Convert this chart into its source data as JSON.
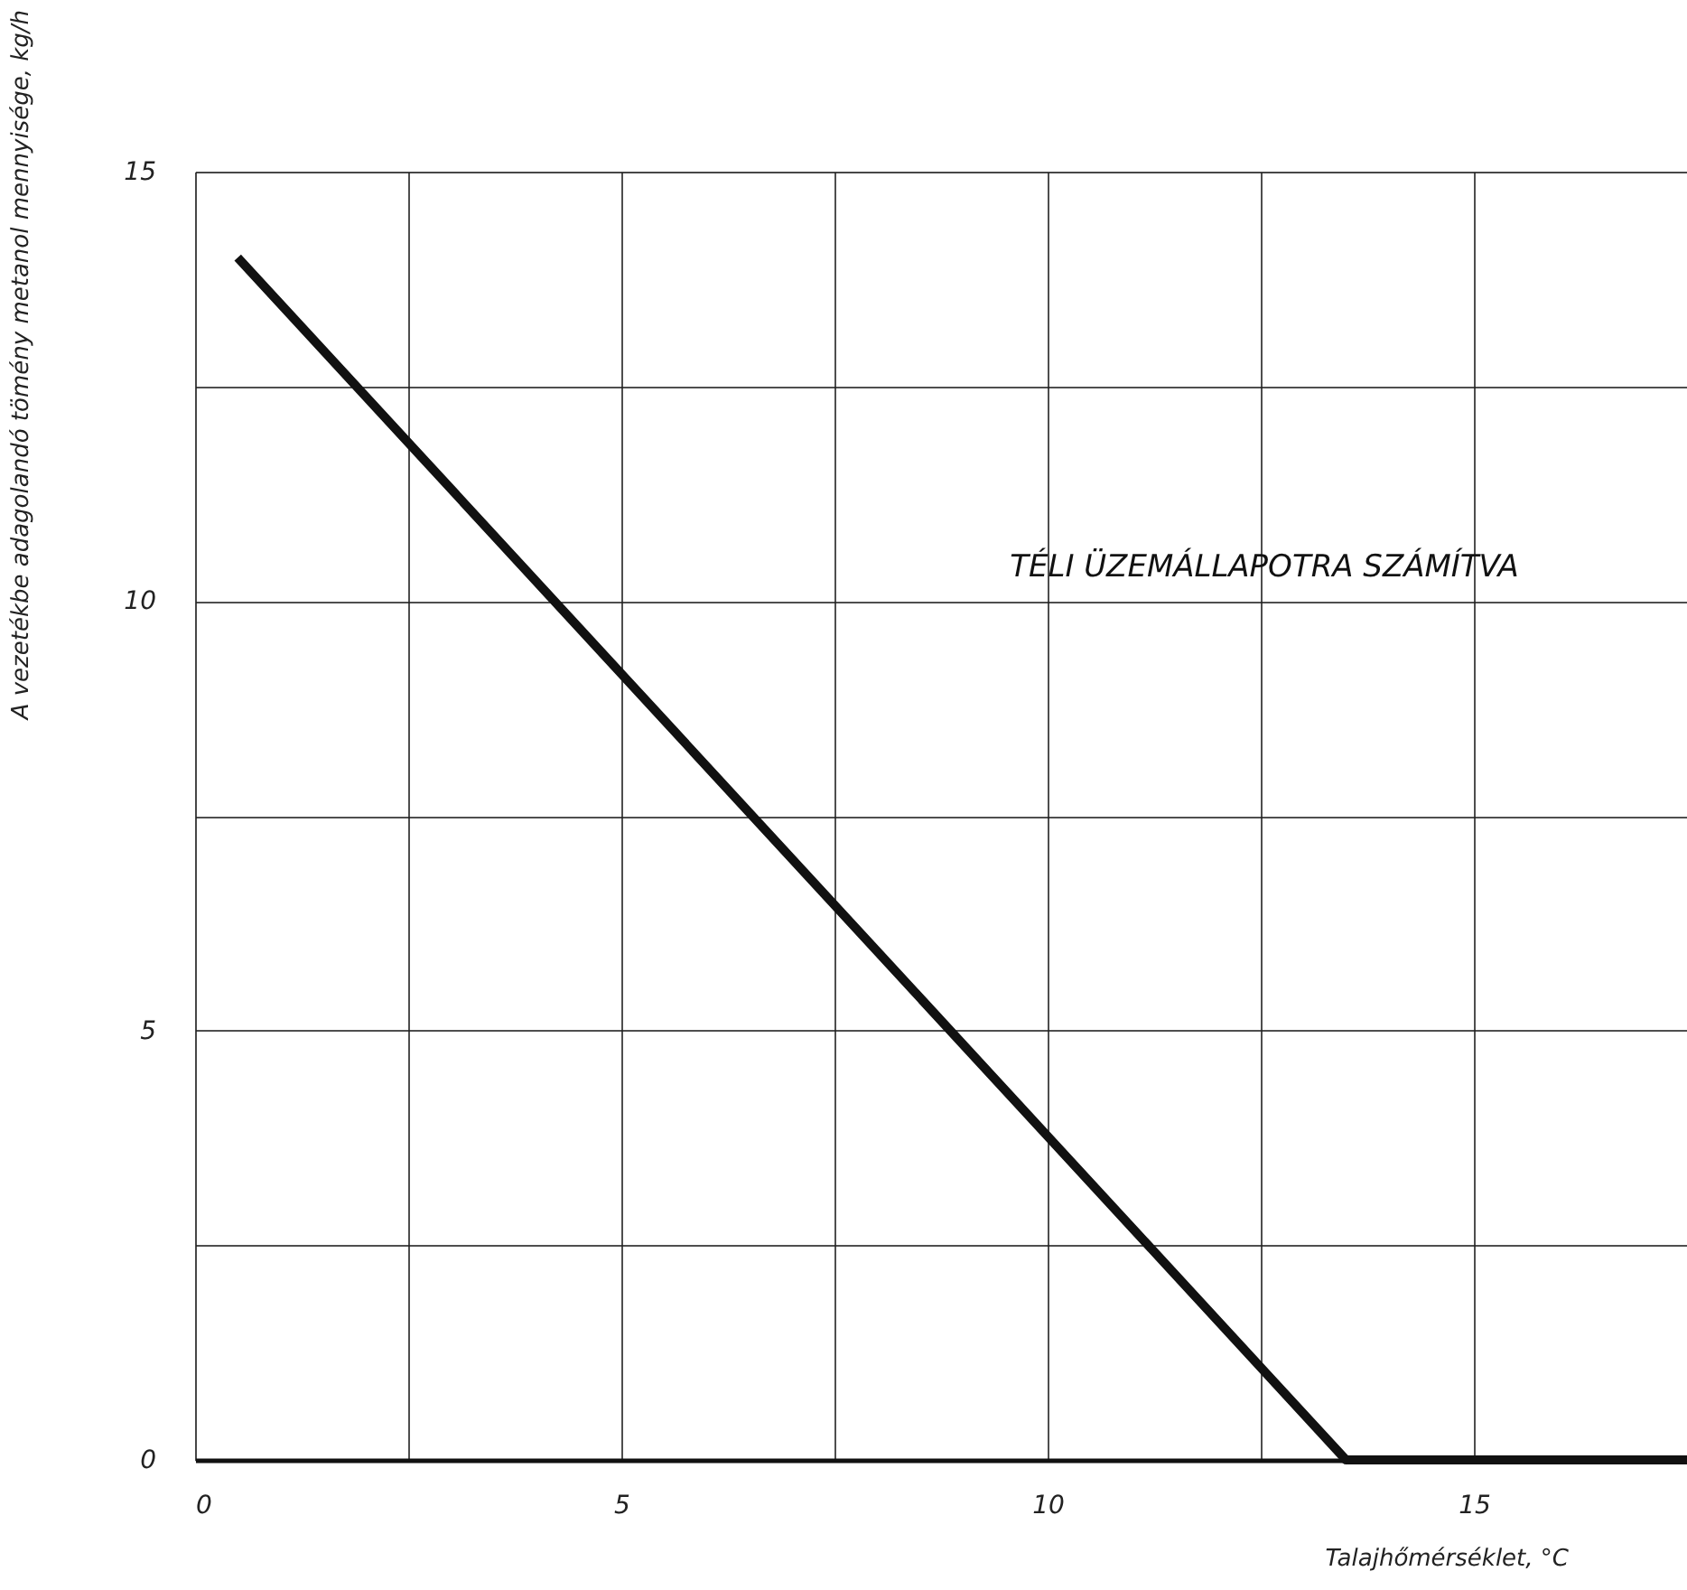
{
  "chart_data": {
    "type": "line",
    "xlabel": "Talajhőmérséklet,  °C",
    "ylabel": "A vezetékbe adagolandó tömény metanol mennyisége,  kg/h",
    "x": [
      0.5,
      13.5,
      17.5
    ],
    "series": [
      {
        "color": "#111111",
        "values": [
          14,
          0,
          0
        ]
      }
    ],
    "xlim": [
      0,
      17.5
    ],
    "ylim": [
      0,
      15
    ],
    "xticks": [
      0,
      {
        "value": 2.5,
        "label": null
      },
      5,
      {
        "value": 7.5,
        "label": null
      },
      10,
      {
        "value": 12.5,
        "label": null
      },
      15
    ],
    "yticks": [
      0,
      {
        "value": 2.5,
        "label": null
      },
      5,
      {
        "value": 7.5,
        "label": null
      },
      10,
      {
        "value": 12.5,
        "label": null
      },
      15
    ],
    "grid": true,
    "marker": "none",
    "line_style": "solid",
    "annotations": [
      "TÉLI  ÜZEMÁLLAPOTRA  SZÁMÍTVA"
    ]
  }
}
